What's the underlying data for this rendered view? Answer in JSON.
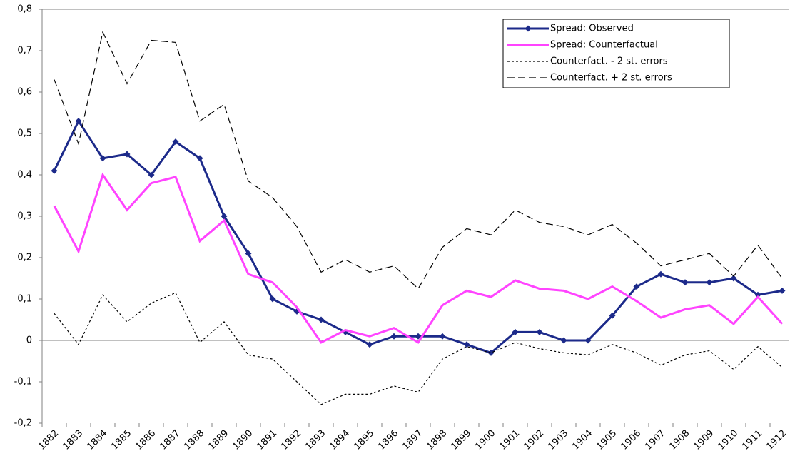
{
  "chart_data": {
    "type": "line",
    "categories": [
      "1882",
      "1883",
      "1884",
      "1885",
      "1886",
      "1887",
      "1888",
      "1889",
      "1890",
      "1891",
      "1892",
      "1893",
      "1894",
      "1895",
      "1896",
      "1897",
      "1898",
      "1899",
      "1900",
      "1901",
      "1902",
      "1903",
      "1904",
      "1905",
      "1906",
      "1907",
      "1908",
      "1909",
      "1910",
      "1911",
      "1912"
    ],
    "series": [
      {
        "name": "Spread: Observed",
        "color": "#1c2a8a",
        "line_style": "solid",
        "marker": "diamond",
        "values": [
          0.41,
          0.53,
          0.44,
          0.45,
          0.4,
          0.48,
          0.44,
          0.3,
          0.21,
          0.1,
          0.07,
          0.05,
          0.02,
          -0.01,
          0.01,
          0.01,
          0.01,
          -0.01,
          -0.03,
          0.02,
          0.02,
          0.0,
          0.0,
          0.06,
          0.13,
          0.16,
          0.14,
          0.14,
          0.15,
          0.11,
          0.12
        ]
      },
      {
        "name": "Spread: Counterfactual",
        "color": "#ff44ff",
        "line_style": "solid",
        "marker": "none",
        "values": [
          0.325,
          0.215,
          0.4,
          0.315,
          0.38,
          0.395,
          0.24,
          0.29,
          0.16,
          0.14,
          0.08,
          -0.005,
          0.025,
          0.01,
          0.03,
          -0.005,
          0.085,
          0.12,
          0.105,
          0.145,
          0.125,
          0.12,
          0.1,
          0.13,
          0.095,
          0.055,
          0.075,
          0.085,
          0.04,
          0.105,
          0.04
        ]
      },
      {
        "name": "Counterfact. - 2 st. errors",
        "color": "#000000",
        "line_style": "dotted",
        "marker": "none",
        "values": [
          0.065,
          -0.01,
          0.11,
          0.045,
          0.09,
          0.115,
          -0.005,
          0.045,
          -0.035,
          -0.045,
          -0.1,
          -0.155,
          -0.13,
          -0.13,
          -0.11,
          -0.125,
          -0.045,
          -0.015,
          -0.03,
          -0.005,
          -0.02,
          -0.03,
          -0.035,
          -0.01,
          -0.03,
          -0.06,
          -0.035,
          -0.025,
          -0.07,
          -0.015,
          -0.065
        ]
      },
      {
        "name": "Counterfact. + 2 st. errors",
        "color": "#000000",
        "line_style": "dashed",
        "marker": "none",
        "values": [
          0.63,
          0.475,
          0.745,
          0.62,
          0.725,
          0.72,
          0.53,
          0.57,
          0.385,
          0.345,
          0.275,
          0.165,
          0.195,
          0.165,
          0.18,
          0.125,
          0.225,
          0.27,
          0.255,
          0.315,
          0.285,
          0.275,
          0.255,
          0.28,
          0.235,
          0.18,
          0.195,
          0.21,
          0.155,
          0.23,
          0.15
        ]
      }
    ],
    "ylim": [
      -0.2,
      0.8
    ],
    "yticks": [
      {
        "value": -0.2,
        "label": "-0,2"
      },
      {
        "value": -0.1,
        "label": "-0,1"
      },
      0,
      {
        "value": 0.1,
        "label": "0,1"
      },
      {
        "value": 0.2,
        "label": "0,2"
      },
      {
        "value": 0.3,
        "label": "0,3"
      },
      {
        "value": 0.4,
        "label": "0,4"
      },
      {
        "value": 0.5,
        "label": "0,5"
      },
      {
        "value": 0.6,
        "label": "0,6"
      },
      {
        "value": 0.7,
        "label": "0,7"
      },
      {
        "value": 0.8,
        "label": "0,8"
      }
    ],
    "legend": "upper right"
  }
}
